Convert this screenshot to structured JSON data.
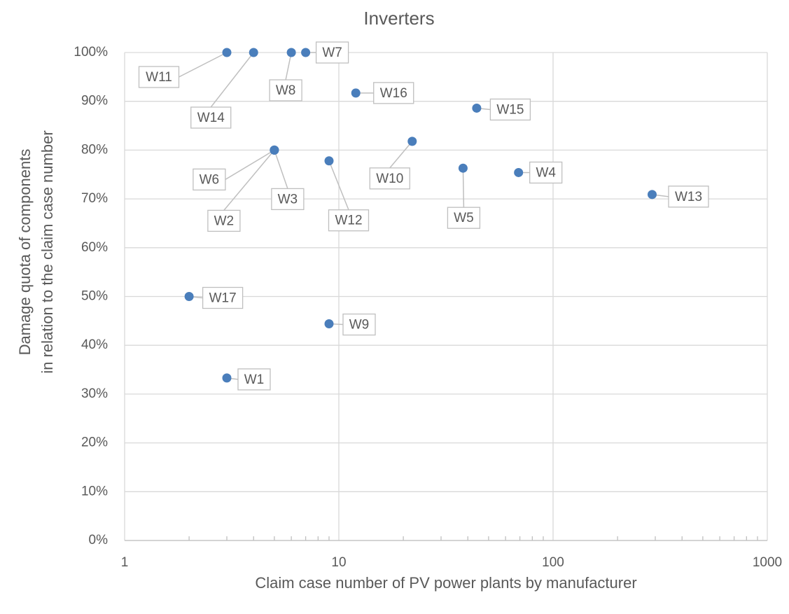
{
  "chart_data": {
    "type": "scatter",
    "title": "Inverters",
    "xlabel": "Claim case number of PV power plants by manufacturer",
    "ylabel": [
      "Damage quota of components",
      "in relation to the claim case number"
    ],
    "x": [
      3,
      4,
      6,
      7,
      12,
      44,
      5,
      5,
      5,
      9,
      22,
      38,
      69,
      290,
      2,
      9,
      3
    ],
    "values": [
      100,
      100,
      100,
      100,
      91.7,
      88.6,
      80,
      80,
      80,
      77.8,
      81.8,
      76.3,
      75.4,
      70.9,
      50,
      44.4,
      33.3
    ],
    "point_labels": [
      "W11",
      "W14",
      "W8",
      "W7",
      "W16",
      "W15",
      "W6",
      "W2",
      "W3",
      "W12",
      "W10",
      "W5",
      "W4",
      "W13",
      "W17",
      "W9",
      "W1"
    ],
    "color": "#4a7ebb",
    "xscale": "log",
    "xlim": [
      1,
      1000
    ],
    "xticks": [
      1,
      10,
      100,
      1000
    ],
    "ylim": [
      0,
      100
    ],
    "yticks": [
      {
        "value": 0,
        "label": "0%"
      },
      {
        "value": 10,
        "label": "10%"
      },
      {
        "value": 20,
        "label": "20%"
      },
      {
        "value": 30,
        "label": "30%"
      },
      {
        "value": 40,
        "label": "40%"
      },
      {
        "value": 50,
        "label": "50%"
      },
      {
        "value": 60,
        "label": "60%"
      },
      {
        "value": 70,
        "label": "70%"
      },
      {
        "value": 80,
        "label": "80%"
      },
      {
        "value": 90,
        "label": "90%"
      },
      {
        "value": 100,
        "label": "100%"
      }
    ],
    "grid": true
  }
}
